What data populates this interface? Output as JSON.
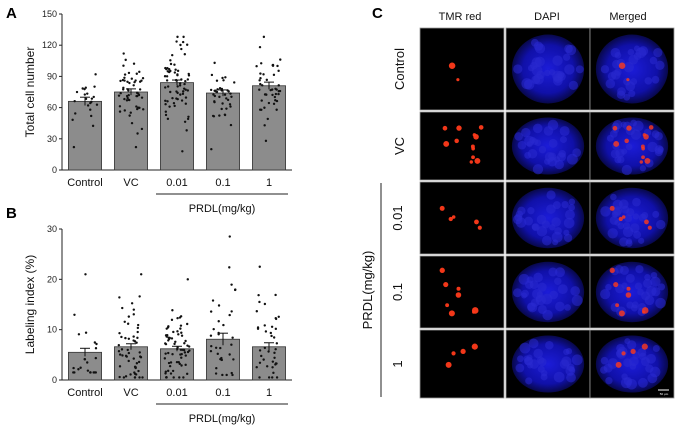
{
  "panels": {
    "A": "A",
    "B": "B",
    "C": "C"
  },
  "chart_data": [
    {
      "type": "bar",
      "panel": "A",
      "categories": [
        "Control",
        "VC",
        "0.01",
        "0.1",
        "1"
      ],
      "values": [
        66,
        75,
        84,
        74,
        81
      ],
      "sem": [
        4,
        3,
        2.5,
        3,
        3.5
      ],
      "n_points": [
        22,
        55,
        70,
        40,
        45
      ],
      "point_range": [
        [
          22,
          92
        ],
        [
          22,
          112
        ],
        [
          18,
          128
        ],
        [
          20,
          103
        ],
        [
          28,
          128
        ]
      ],
      "ylabel": "Total cell number",
      "ylim": [
        0,
        150
      ],
      "yticks": [
        0,
        30,
        60,
        90,
        120,
        150
      ],
      "group_label": "PRDL(mg/kg)",
      "bar_color": "#8c8c8c"
    },
    {
      "type": "bar",
      "panel": "B",
      "categories": [
        "Control",
        "VC",
        "0.01",
        "0.1",
        "1"
      ],
      "values": [
        5.5,
        6.6,
        6.2,
        8.1,
        6.6
      ],
      "sem": [
        0.8,
        0.6,
        0.5,
        1.2,
        0.8
      ],
      "n_points": [
        22,
        55,
        70,
        35,
        40
      ],
      "point_range": [
        [
          1.5,
          21
        ],
        [
          0.5,
          21
        ],
        [
          0.5,
          20
        ],
        [
          1,
          28.5
        ],
        [
          0.5,
          22.5
        ]
      ],
      "ylabel": "Labeling index (%)",
      "ylim": [
        0,
        30
      ],
      "yticks": [
        0,
        10,
        20,
        30
      ],
      "group_label": "PRDL(mg/kg)",
      "bar_color": "#8c8c8c"
    }
  ],
  "micrographs": {
    "columns": [
      "TMR red",
      "DAPI",
      "Merged"
    ],
    "rows": [
      "Control",
      "VC",
      "0.01",
      "0.1",
      "1"
    ],
    "group_label": "PRDL(mg/kg)",
    "red_spots": [
      2,
      12,
      5,
      8,
      4
    ],
    "scalebar": "50 μm",
    "nucleus_color": "#2a2ad0",
    "spot_color": "#ff3a1a"
  }
}
